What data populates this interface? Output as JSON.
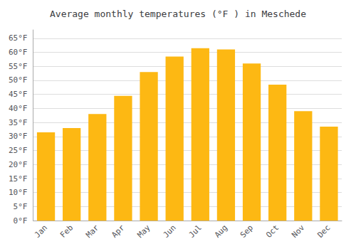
{
  "chart_data": {
    "type": "bar",
    "title": "Average monthly temperatures (°F ) in Meschede",
    "categories": [
      "Jan",
      "Feb",
      "Mar",
      "Apr",
      "May",
      "Jun",
      "Jul",
      "Aug",
      "Sep",
      "Oct",
      "Nov",
      "Dec"
    ],
    "values": [
      31.5,
      33.0,
      38.0,
      44.5,
      53.0,
      58.5,
      61.5,
      61.0,
      56.0,
      48.5,
      39.0,
      33.5
    ],
    "color": "#FDB813",
    "ylim": [
      0,
      68
    ],
    "yticks": [
      {
        "value": 0,
        "label": "0°F"
      },
      {
        "value": 5,
        "label": "5°F"
      },
      {
        "value": 10,
        "label": "10°F"
      },
      {
        "value": 15,
        "label": "15°F"
      },
      {
        "value": 20,
        "label": "20°F"
      },
      {
        "value": 25,
        "label": "25°F"
      },
      {
        "value": 30,
        "label": "30°F"
      },
      {
        "value": 35,
        "label": "35°F"
      },
      {
        "value": 40,
        "label": "40°F"
      },
      {
        "value": 45,
        "label": "45°F"
      },
      {
        "value": 50,
        "label": "50°F"
      },
      {
        "value": 55,
        "label": "55°F"
      },
      {
        "value": 60,
        "label": "60°F"
      },
      {
        "value": 65,
        "label": "65°F"
      }
    ],
    "grid": true
  }
}
